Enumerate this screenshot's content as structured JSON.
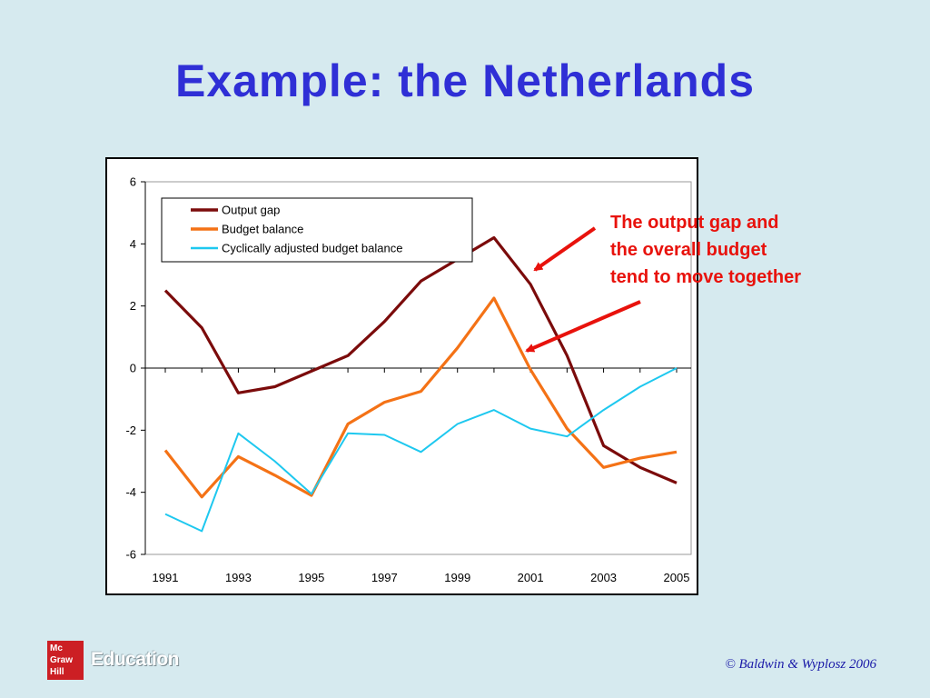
{
  "slide": {
    "title": "Example: the Netherlands",
    "annotation_lines": [
      "The output gap and",
      "the overall budget",
      "tend to move together"
    ],
    "copyright": "© Baldwin & Wyplosz 2006",
    "logo_lines": [
      "Mc",
      "Graw",
      "Hill"
    ],
    "logo_text": "Education"
  },
  "colors": {
    "title": "#2f2fd6",
    "annotation": "#e8120c",
    "output_gap": "#7b0b0b",
    "budget_balance": "#f47216",
    "cyclically_adjusted": "#1ec8ef",
    "background": "#d6eaef"
  },
  "chart_data": {
    "type": "line",
    "x": [
      1991,
      1992,
      1993,
      1994,
      1995,
      1996,
      1997,
      1998,
      1999,
      2000,
      2001,
      2002,
      2003,
      2004,
      2005
    ],
    "x_tick_labels": [
      "1991",
      "1993",
      "1995",
      "1997",
      "1999",
      "2001",
      "2003",
      "2005"
    ],
    "y_tick_labels": [
      "6",
      "4",
      "2",
      "0",
      "-2",
      "-4",
      "-6"
    ],
    "ylim": [
      -6,
      6
    ],
    "grid": false,
    "legend_position": "top-left",
    "series": [
      {
        "name": "Output gap",
        "color": "#7b0b0b",
        "values": [
          2.5,
          1.3,
          -0.8,
          -0.6,
          -0.1,
          0.4,
          1.5,
          2.8,
          3.5,
          4.2,
          2.7,
          0.4,
          -2.5,
          -3.2,
          -3.7
        ]
      },
      {
        "name": "Budget balance",
        "color": "#f47216",
        "values": [
          -2.65,
          -4.15,
          -2.85,
          -3.45,
          -4.1,
          -1.8,
          -1.1,
          -0.75,
          0.65,
          2.25,
          -0.05,
          -1.95,
          -3.2,
          -2.9,
          -2.7
        ]
      },
      {
        "name": "Cyclically adjusted budget balance",
        "color": "#1ec8ef",
        "values": [
          -4.7,
          -5.25,
          -2.1,
          -3.0,
          -4.05,
          -2.1,
          -2.15,
          -2.7,
          -1.8,
          -1.35,
          -1.95,
          -2.2,
          -1.35,
          -0.6,
          0.0
        ]
      }
    ]
  }
}
